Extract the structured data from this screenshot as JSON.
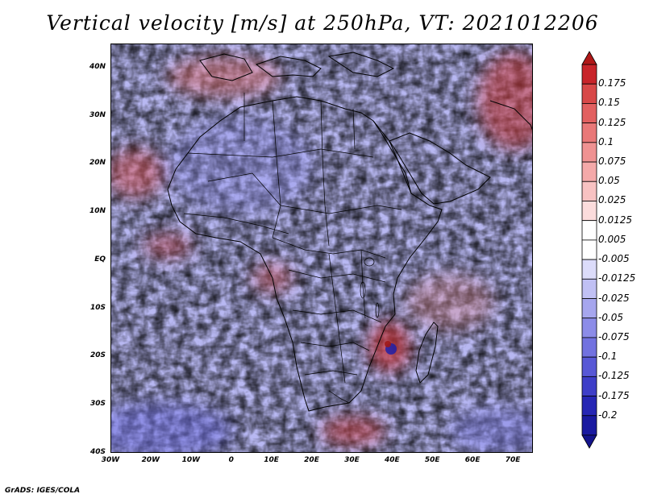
{
  "title": "Vertical velocity [m/s] at 250hPa, VT: 2021012206",
  "credit": "GrADS: IGES/COLA",
  "map": {
    "variable": "Vertical velocity",
    "units": "m/s",
    "level": "250hPa",
    "valid_time": "2021012206",
    "lat_range": [
      -40,
      45
    ],
    "lon_range": [
      -30,
      75
    ],
    "lat_ticks": [
      "40N",
      "30N",
      "20N",
      "10N",
      "EQ",
      "10S",
      "20S",
      "30S",
      "40S"
    ],
    "lat_values": [
      40,
      30,
      20,
      10,
      0,
      -10,
      -20,
      -30,
      -40
    ],
    "lon_ticks": [
      "30W",
      "20W",
      "10W",
      "0",
      "10E",
      "20E",
      "30E",
      "40E",
      "50E",
      "60E",
      "70E"
    ],
    "lon_values": [
      -30,
      -20,
      -10,
      0,
      10,
      20,
      30,
      40,
      50,
      60,
      70
    ]
  },
  "colorbar": {
    "labels": [
      "0.175",
      "0.15",
      "0.125",
      "0.1",
      "0.075",
      "0.05",
      "0.025",
      "0.0125",
      "0.005",
      "-0.005",
      "-0.0125",
      "-0.025",
      "-0.05",
      "-0.075",
      "-0.1",
      "-0.125",
      "-0.175",
      "-0.2"
    ],
    "colors": [
      "#c8242a",
      "#d84848",
      "#e26060",
      "#e97878",
      "#ef9292",
      "#f4a9a9",
      "#f8c2c2",
      "#fbdcdc",
      "#ffffff",
      "#ffffff",
      "#dcdcfa",
      "#c0c0f4",
      "#a6a6ee",
      "#8c8ce8",
      "#7272e0",
      "#5858d6",
      "#3e3ec8",
      "#2626b4",
      "#1a1aa0"
    ]
  },
  "features": {
    "cyclone_marker": "intense updraft core over Mozambique Channel"
  }
}
